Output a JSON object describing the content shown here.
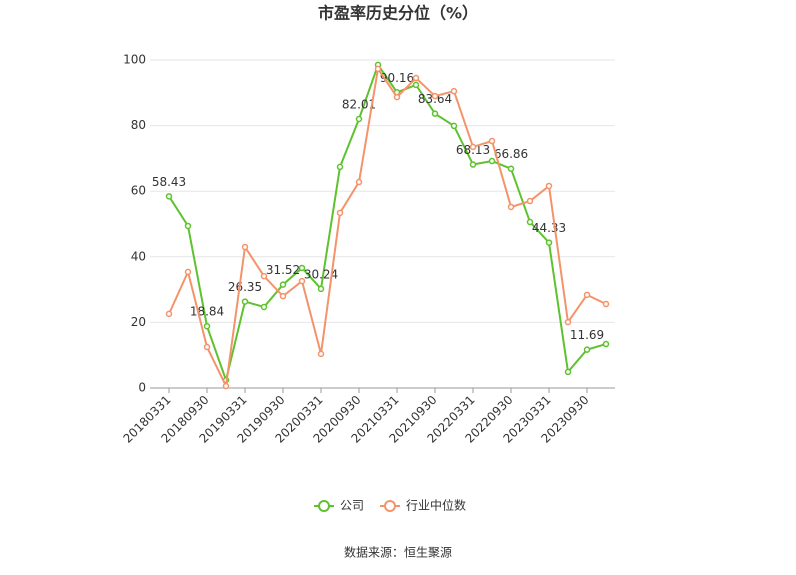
{
  "chart_data": {
    "type": "line",
    "title": "市盈率历史分位（%）",
    "categories": [
      "20180331",
      null,
      "20180930",
      null,
      "20190331",
      null,
      "20190930",
      null,
      "20200331",
      null,
      "20200930",
      null,
      "20210331",
      null,
      "20210930",
      null,
      "20220331",
      null,
      "20220930",
      null,
      "20230331",
      null,
      "20230930",
      null
    ],
    "series": [
      {
        "name": "公司",
        "color": "#5ec22e",
        "values": [
          58.43,
          49.4,
          18.84,
          2.4,
          26.35,
          24.7,
          31.52,
          36.6,
          30.24,
          67.4,
          82.01,
          98.5,
          90.16,
          92.4,
          83.64,
          79.9,
          68.13,
          69.2,
          66.86,
          50.6,
          44.33,
          4.9,
          11.69,
          13.4
        ]
      },
      {
        "name": "行业中位数",
        "color": "#f4936a",
        "values": [
          22.6,
          35.4,
          12.5,
          0.6,
          43.0,
          34.1,
          28.0,
          32.6,
          10.4,
          53.4,
          62.8,
          97.3,
          88.7,
          94.5,
          89.0,
          90.5,
          73.5,
          75.3,
          55.2,
          57.0,
          61.6,
          20.1,
          28.4,
          25.6
        ]
      }
    ],
    "ylim": [
      0,
      100
    ],
    "yticks": [
      0,
      20,
      40,
      60,
      80,
      100
    ],
    "grid": true,
    "source": "数据来源：恒生聚源"
  }
}
